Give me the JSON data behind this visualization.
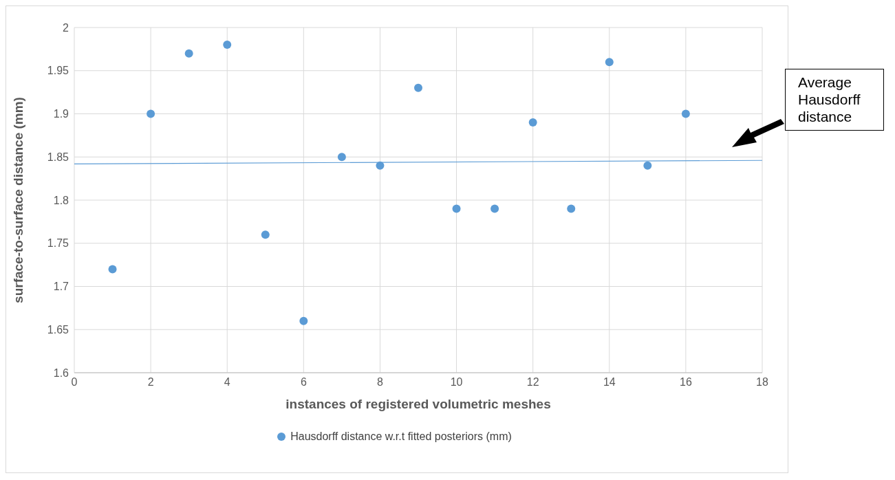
{
  "chart_data": {
    "type": "scatter",
    "xlabel": "instances of registered volumetric meshes",
    "ylabel": "surface-to-surface distance (mm)",
    "x": [
      1,
      2,
      3,
      4,
      5,
      6,
      7,
      8,
      9,
      10,
      11,
      12,
      13,
      14,
      15,
      16
    ],
    "series": [
      {
        "name": "Hausdorff distance w.r.t fitted posteriors (mm)",
        "color": "#5b9bd5",
        "values": [
          1.72,
          1.9,
          1.97,
          1.98,
          1.76,
          1.66,
          1.85,
          1.84,
          1.93,
          1.79,
          1.79,
          1.89,
          1.79,
          1.96,
          1.84,
          1.9
        ]
      },
      {
        "type": "line",
        "marker": "none",
        "color": "#5b9bd5",
        "x": [
          0,
          18
        ],
        "values": [
          1.842,
          1.846
        ]
      }
    ],
    "xlim": [
      0,
      18
    ],
    "xticks": [
      0,
      2,
      4,
      6,
      8,
      10,
      12,
      14,
      16,
      18
    ],
    "ylim": [
      1.6,
      2
    ],
    "yticks": [
      1.6,
      1.65,
      1.7,
      1.75,
      1.8,
      1.85,
      1.9,
      1.95,
      2
    ],
    "grid": true,
    "legend": "bottom",
    "marker": "circle",
    "line_style": "solid",
    "annotations": [
      "Average Hausdorff distance"
    ]
  }
}
